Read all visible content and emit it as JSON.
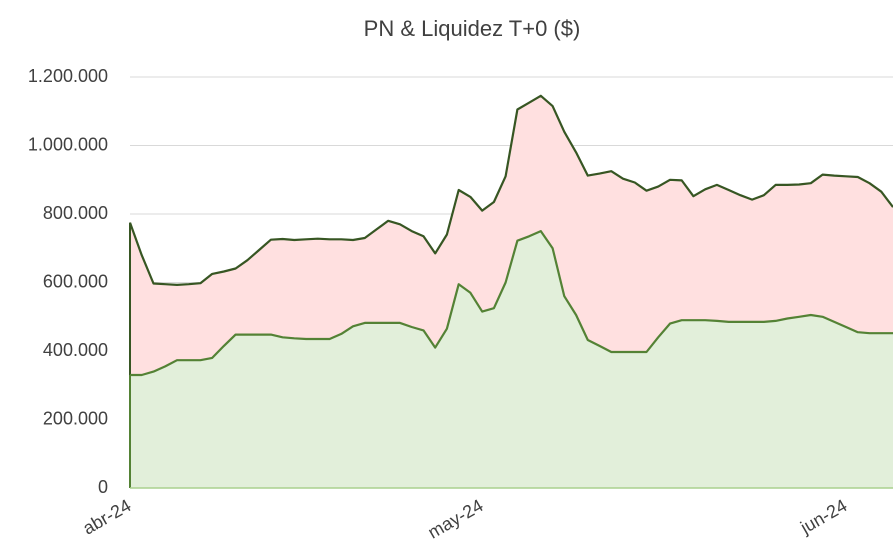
{
  "chart_data": {
    "type": "area",
    "title": "PN & Liquidez T+0 ($)",
    "categories": [
      "abr-24",
      null,
      null,
      null,
      null,
      null,
      null,
      null,
      null,
      null,
      null,
      null,
      null,
      null,
      null,
      null,
      null,
      null,
      null,
      null,
      null,
      null,
      null,
      null,
      null,
      null,
      null,
      null,
      null,
      null,
      "may-24",
      null,
      null,
      null,
      null,
      null,
      null,
      null,
      null,
      null,
      null,
      null,
      null,
      null,
      null,
      null,
      null,
      null,
      null,
      null,
      null,
      null,
      null,
      null,
      null,
      null,
      null,
      null,
      null,
      null,
      null,
      "jun-24",
      null,
      null,
      null,
      null
    ],
    "series": [
      {
        "color": "#375623",
        "fill": "#ffe0e0",
        "values": [
          775000,
          680000,
          597000,
          595000,
          593000,
          595000,
          598000,
          625000,
          632000,
          641000,
          665000,
          695000,
          725000,
          727000,
          724000,
          726000,
          728000,
          726000,
          726000,
          724000,
          730000,
          755000,
          780000,
          770000,
          750000,
          735000,
          685000,
          740000,
          870000,
          850000,
          810000,
          835000,
          910000,
          1105000,
          1125000,
          1145000,
          1115000,
          1040000,
          980000,
          912000,
          918000,
          925000,
          903000,
          892000,
          868000,
          880000,
          900000,
          898000,
          852000,
          872000,
          885000,
          870000,
          855000,
          842000,
          855000,
          885000,
          885000,
          886000,
          890000,
          915000,
          912000,
          910000,
          908000,
          890000,
          865000,
          820000
        ]
      },
      {
        "color": "#548235",
        "fill": "#e2efda",
        "values": [
          330000,
          330000,
          340000,
          355000,
          373000,
          373000,
          373000,
          380000,
          415000,
          448000,
          448000,
          448000,
          448000,
          440000,
          437000,
          435000,
          435000,
          435000,
          450000,
          472000,
          482000,
          482000,
          482000,
          482000,
          470000,
          460000,
          410000,
          465000,
          595000,
          570000,
          515000,
          525000,
          600000,
          722000,
          735000,
          750000,
          700000,
          560000,
          505000,
          432000,
          415000,
          397000,
          397000,
          397000,
          397000,
          440000,
          480000,
          490000,
          490000,
          490000,
          488000,
          485000,
          485000,
          485000,
          485000,
          488000,
          495000,
          500000,
          505000,
          500000,
          485000,
          470000,
          455000,
          452000,
          452000,
          452000
        ]
      }
    ],
    "ylim": [
      0,
      1200000
    ],
    "yticks": [
      0,
      {
        "value": 200000,
        "label": "200.000"
      },
      {
        "value": 400000,
        "label": "400.000"
      },
      {
        "value": 600000,
        "label": "600.000"
      },
      {
        "value": 800000,
        "label": "800.000"
      },
      {
        "value": 1000000,
        "label": "1.000.000"
      },
      {
        "value": 1200000,
        "label": "1.200.000"
      }
    ],
    "grid": true
  }
}
